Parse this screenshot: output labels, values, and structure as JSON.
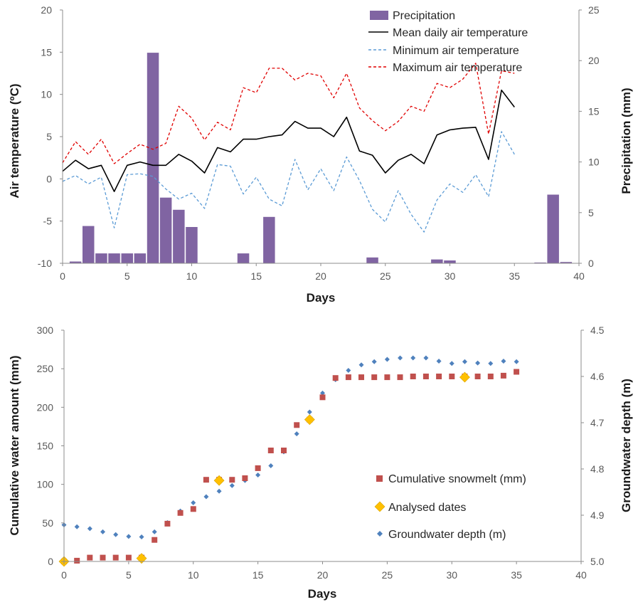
{
  "chart_data": [
    {
      "type": "bar+line",
      "xlabel": "Days",
      "ylabel_left": "Air temperature (ºC)",
      "ylabel_right": "Precipitation (mm)",
      "x_range": [
        0,
        40
      ],
      "x_ticks": [
        0,
        5,
        10,
        15,
        20,
        25,
        30,
        35,
        40
      ],
      "y_left_range": [
        -10,
        20
      ],
      "y_left_ticks": [
        -10,
        -5,
        0,
        5,
        10,
        15,
        20
      ],
      "y_right_range": [
        0,
        25
      ],
      "y_right_ticks": [
        0,
        5,
        10,
        15,
        20,
        25
      ],
      "grid": false,
      "legend_position": "top-right",
      "bars": {
        "name": "Precipitation",
        "axis": "right",
        "color": "#8064A2",
        "days": [
          1,
          2,
          3,
          4,
          5,
          6,
          7,
          8,
          9,
          10,
          11,
          12,
          13,
          14,
          15,
          16,
          17,
          18,
          19,
          20,
          21,
          22,
          23,
          24,
          25,
          26,
          27,
          28,
          29,
          30,
          31,
          32,
          33,
          34,
          35,
          36,
          37,
          38,
          39
        ],
        "values": [
          0.2,
          3.7,
          1.0,
          1.0,
          1.0,
          1.0,
          20.8,
          6.5,
          5.3,
          3.6,
          0,
          0,
          0,
          1.0,
          0,
          4.6,
          0,
          0,
          0,
          0,
          0,
          0,
          0,
          0.6,
          0,
          0,
          0,
          0,
          0.4,
          0.3,
          0,
          0,
          0,
          0,
          0,
          0.05,
          0.1,
          6.8,
          0.15
        ]
      },
      "series": [
        {
          "name": "Mean daily air temperature",
          "axis": "left",
          "color": "#000000",
          "style": "solid",
          "x": [
            0,
            1,
            2,
            3,
            4,
            5,
            6,
            7,
            8,
            9,
            10,
            11,
            12,
            13,
            14,
            15,
            16,
            17,
            18,
            19,
            20,
            21,
            22,
            23,
            24,
            25,
            26,
            27,
            28,
            29,
            30,
            31,
            32,
            33,
            34,
            35
          ],
          "values": [
            0.9,
            2.2,
            1.2,
            1.6,
            -1.5,
            1.6,
            2.0,
            1.6,
            1.6,
            2.9,
            2.1,
            0.7,
            3.7,
            3.2,
            4.7,
            4.7,
            5.0,
            5.2,
            6.8,
            6.0,
            6.0,
            5.0,
            7.3,
            3.3,
            2.8,
            0.7,
            2.2,
            2.9,
            1.8,
            5.2,
            5.8,
            6.0,
            6.1,
            2.3,
            10.5,
            8.5
          ]
        },
        {
          "name": "Minimum air temperature",
          "axis": "left",
          "color": "#5B9BD5",
          "style": "dashed",
          "x": [
            0,
            1,
            2,
            3,
            4,
            5,
            6,
            7,
            8,
            9,
            10,
            11,
            12,
            13,
            14,
            15,
            16,
            17,
            18,
            19,
            20,
            21,
            22,
            23,
            24,
            25,
            26,
            27,
            28,
            29,
            30,
            31,
            32,
            33,
            34,
            35
          ],
          "values": [
            -0.3,
            0.4,
            -0.6,
            0.2,
            -5.8,
            0.5,
            0.6,
            0.3,
            -1.2,
            -2.4,
            -1.7,
            -3.5,
            1.7,
            1.5,
            -1.8,
            0.2,
            -2.4,
            -3.2,
            2.3,
            -1.3,
            1.2,
            -1.4,
            2.6,
            -0.2,
            -3.6,
            -5.1,
            -1.4,
            -4.2,
            -6.3,
            -2.5,
            -0.6,
            -1.6,
            0.5,
            -2.1,
            5.6,
            2.9
          ]
        },
        {
          "name": "Maximum air temperature",
          "axis": "left",
          "color": "#E00000",
          "style": "dashed",
          "x": [
            0,
            1,
            2,
            3,
            4,
            5,
            6,
            7,
            8,
            9,
            10,
            11,
            12,
            13,
            14,
            15,
            16,
            17,
            18,
            19,
            20,
            21,
            22,
            23,
            24,
            25,
            26,
            27,
            28,
            29,
            30,
            31,
            32,
            33,
            34,
            35
          ],
          "values": [
            1.9,
            4.4,
            2.9,
            4.7,
            1.8,
            3.0,
            4.1,
            3.5,
            4.2,
            8.6,
            7.2,
            4.6,
            6.7,
            5.8,
            10.8,
            10.2,
            13.1,
            13.1,
            11.7,
            12.5,
            12.2,
            9.6,
            12.5,
            8.4,
            6.9,
            5.7,
            6.8,
            8.6,
            8.0,
            11.3,
            10.8,
            11.8,
            13.7,
            5.3,
            12.8,
            12.5
          ]
        }
      ],
      "legend": [
        "Precipitation",
        "Mean daily air temperature",
        "Minimum air temperature",
        "Maximum air temperature"
      ]
    },
    {
      "type": "scatter",
      "xlabel": "Days",
      "ylabel_left": "Cumulative water amount (mm)",
      "ylabel_right": "Groundwater depth (m)",
      "x_range": [
        0,
        40
      ],
      "x_ticks": [
        0,
        5,
        10,
        15,
        20,
        25,
        30,
        35,
        40
      ],
      "y_left_range": [
        0,
        300
      ],
      "y_left_ticks": [
        0,
        50,
        100,
        150,
        200,
        250,
        300
      ],
      "y_right_range": [
        5.0,
        4.5
      ],
      "y_right_ticks": [
        "4.5",
        "4.6",
        "4.7",
        "4.8",
        "4.9",
        "5.0"
      ],
      "grid": false,
      "legend_position": "bottom-right",
      "series": [
        {
          "name": "Cumulative snowmelt (mm)",
          "axis": "left",
          "color": "#C0504D",
          "marker": "square",
          "x": [
            0,
            1,
            2,
            3,
            4,
            5,
            6,
            7,
            8,
            9,
            10,
            11,
            12,
            13,
            14,
            15,
            16,
            17,
            18,
            19,
            20,
            21,
            22,
            23,
            24,
            25,
            26,
            27,
            28,
            29,
            30,
            31,
            32,
            33,
            34,
            35
          ],
          "values": [
            0,
            1,
            5,
            5,
            5,
            5,
            5,
            28,
            49,
            63,
            68,
            106,
            106,
            106,
            108,
            121,
            144,
            144,
            177,
            184,
            213,
            238,
            239,
            239,
            239,
            239,
            239,
            240,
            240,
            240,
            240,
            240,
            240,
            240,
            241,
            246
          ]
        },
        {
          "name": "Analysed dates",
          "axis": "left",
          "color": "#FFC000",
          "marker": "diamond",
          "x": [
            0,
            6,
            12,
            19,
            31
          ],
          "values": [
            0,
            4,
            105,
            184,
            239
          ]
        },
        {
          "name": "Groundwater depth (m)",
          "axis": "right",
          "color": "#4F81BD",
          "marker": "small-diamond",
          "x": [
            0,
            1,
            2,
            3,
            4,
            5,
            6,
            7,
            8,
            9,
            10,
            11,
            12,
            13,
            14,
            15,
            16,
            17,
            18,
            19,
            20,
            21,
            22,
            23,
            24,
            25,
            26,
            27,
            28,
            29,
            30,
            31,
            32,
            33,
            34,
            35
          ],
          "values": [
            4.921,
            4.925,
            4.929,
            4.936,
            4.942,
            4.946,
            4.947,
            4.936,
            4.916,
            4.891,
            4.873,
            4.86,
            4.848,
            4.836,
            4.825,
            4.813,
            4.793,
            4.763,
            4.724,
            4.677,
            4.636,
            4.607,
            4.587,
            4.575,
            4.568,
            4.563,
            4.56,
            4.56,
            4.56,
            4.567,
            4.572,
            4.568,
            4.571,
            4.572,
            4.567,
            4.568
          ]
        }
      ],
      "legend": [
        "Cumulative snowmelt (mm)",
        "Analysed dates",
        "Groundwater depth (m)"
      ]
    }
  ]
}
